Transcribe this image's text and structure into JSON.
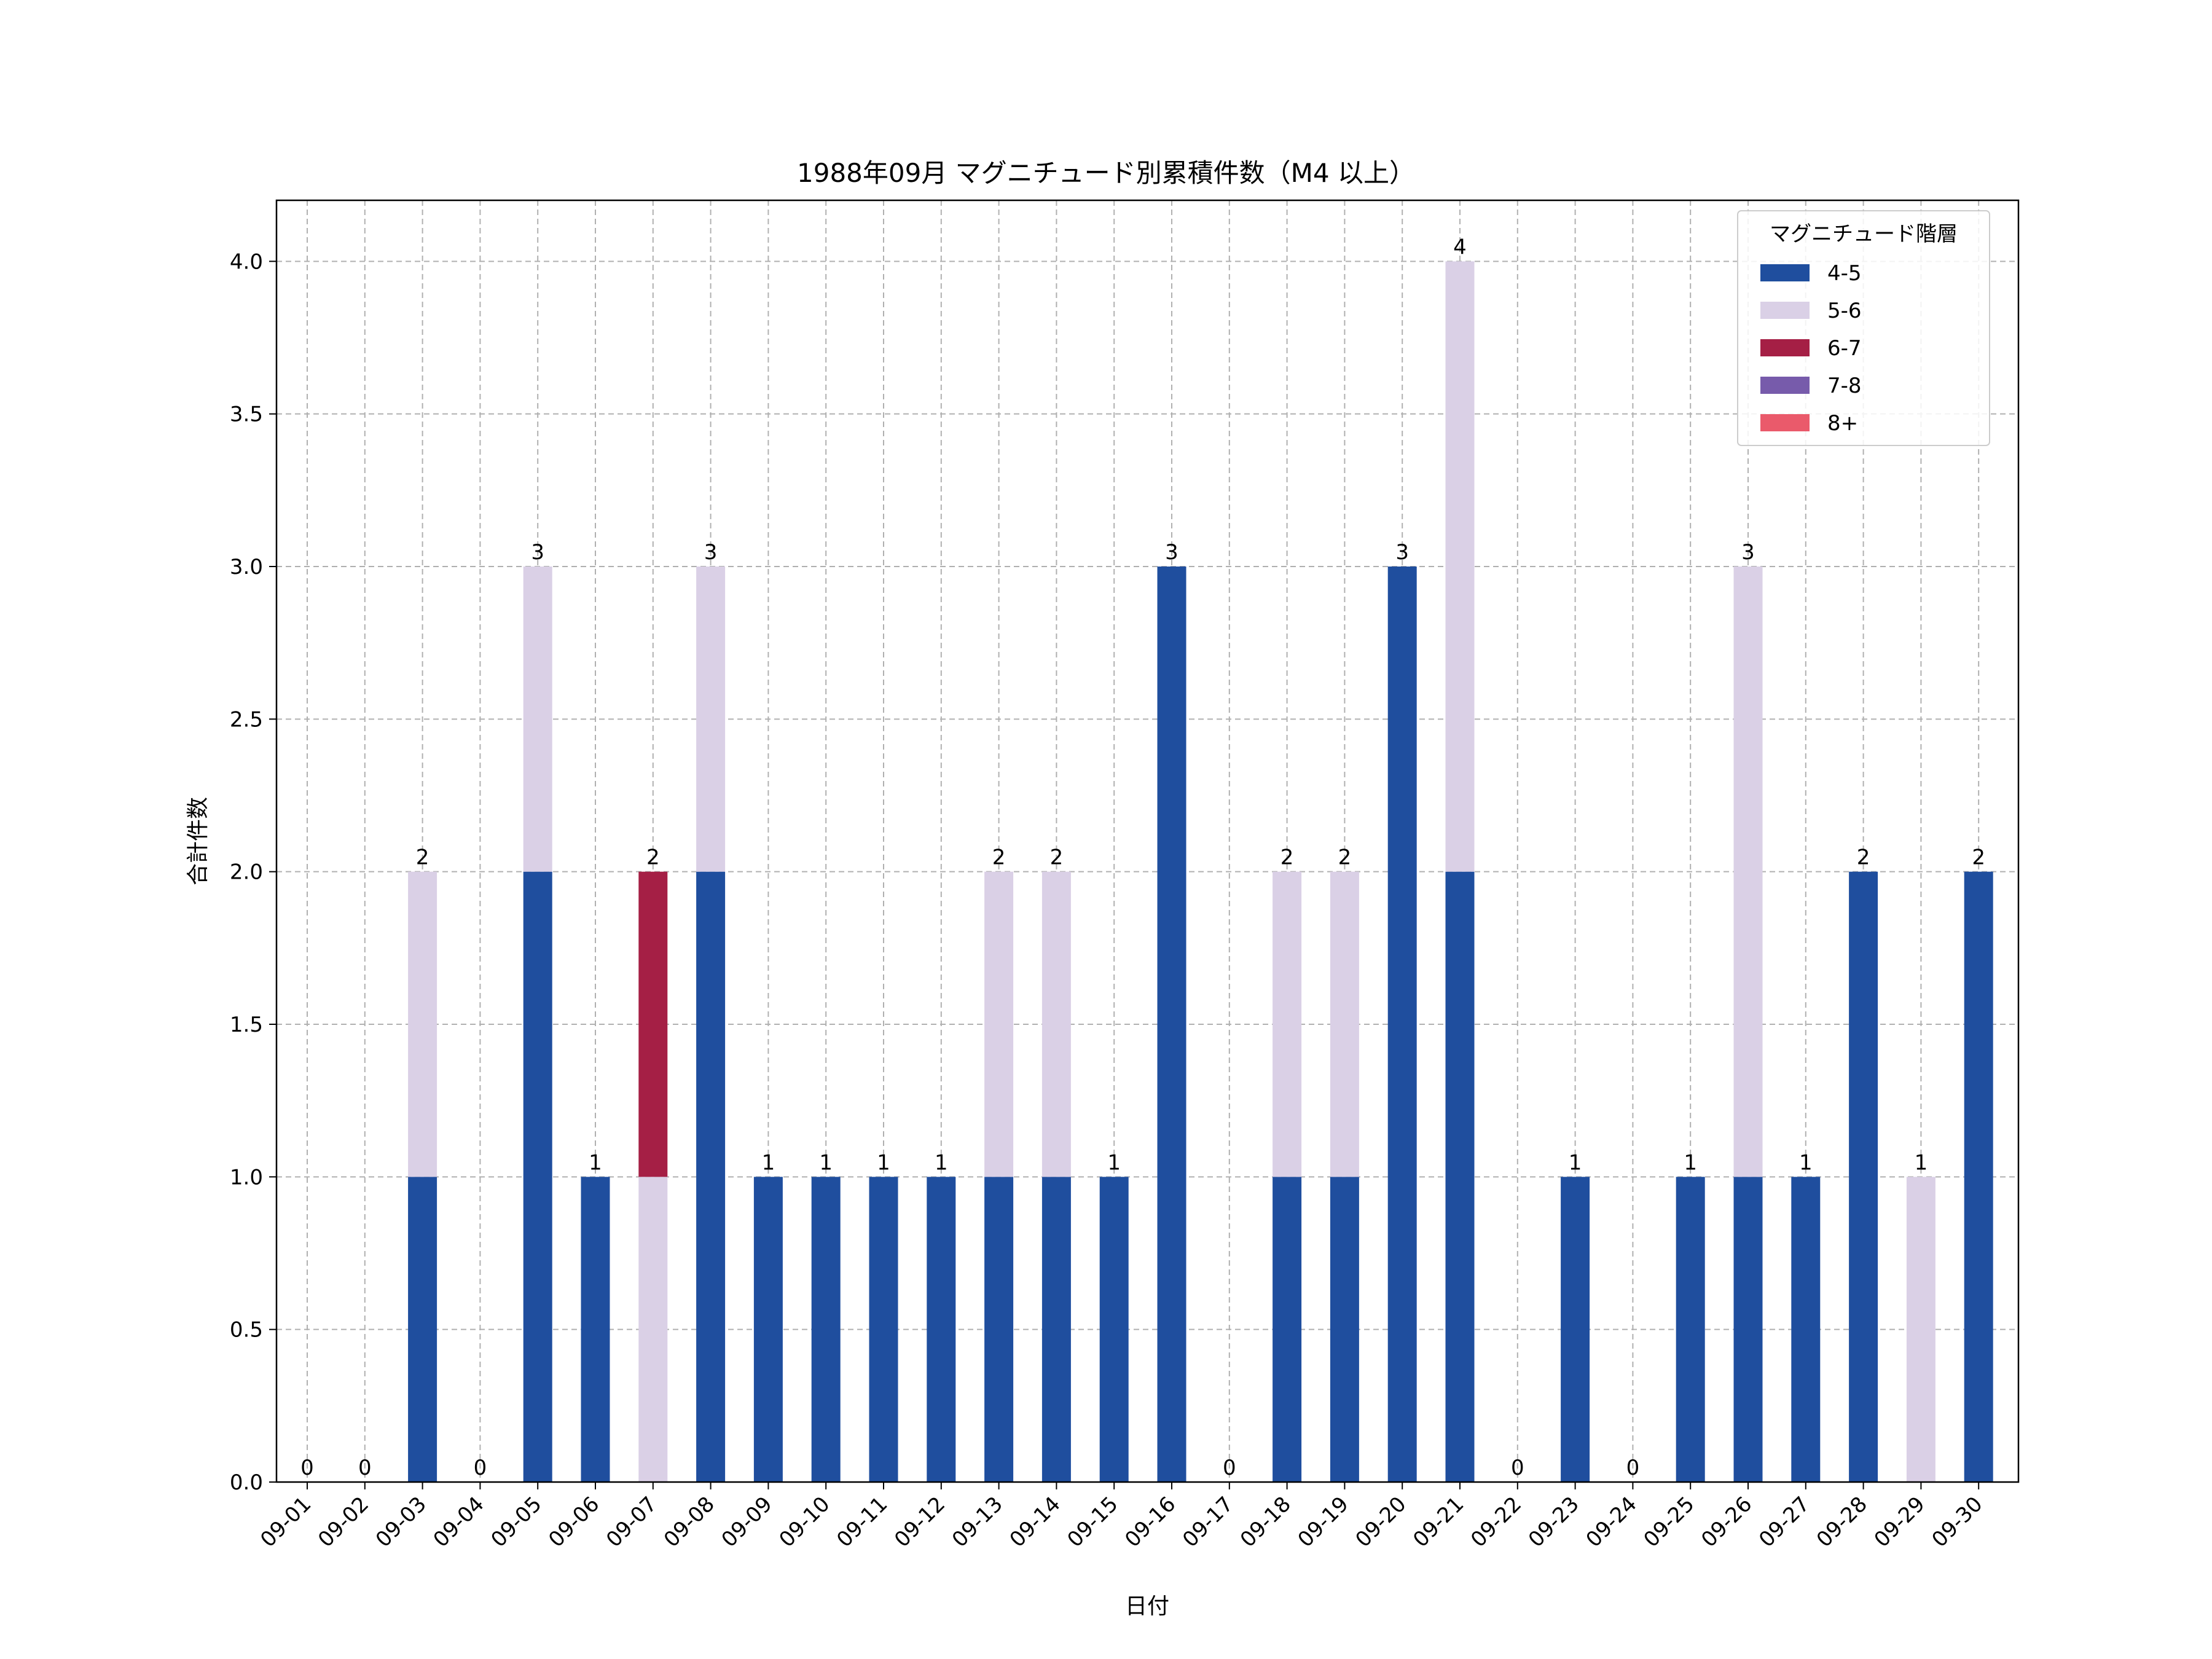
{
  "chart_data": {
    "type": "bar",
    "stacked": true,
    "title": "1988年09月 マグニチュード別累積件数（M4 以上）",
    "xlabel": "日付",
    "ylabel": "合計件数",
    "ylim": [
      0,
      4.2
    ],
    "yticks": [
      0.0,
      0.5,
      1.0,
      1.5,
      2.0,
      2.5,
      3.0,
      3.5,
      4.0
    ],
    "ytick_labels": [
      "0.0",
      "0.5",
      "1.0",
      "1.5",
      "2.0",
      "2.5",
      "3.0",
      "3.5",
      "4.0"
    ],
    "grid": true,
    "legend_title": "マグニチュード階層",
    "legend_position": "top-right",
    "categories": [
      "09-01",
      "09-02",
      "09-03",
      "09-04",
      "09-05",
      "09-06",
      "09-07",
      "09-08",
      "09-09",
      "09-10",
      "09-11",
      "09-12",
      "09-13",
      "09-14",
      "09-15",
      "09-16",
      "09-17",
      "09-18",
      "09-19",
      "09-20",
      "09-21",
      "09-22",
      "09-23",
      "09-24",
      "09-25",
      "09-26",
      "09-27",
      "09-28",
      "09-29",
      "09-30"
    ],
    "series": [
      {
        "name": "4-5",
        "color": "#1f4e9e",
        "values": [
          0,
          0,
          1,
          0,
          2,
          1,
          0,
          2,
          1,
          1,
          1,
          1,
          1,
          1,
          1,
          3,
          0,
          1,
          1,
          3,
          2,
          0,
          1,
          0,
          1,
          1,
          1,
          2,
          0,
          2
        ]
      },
      {
        "name": "5-6",
        "color": "#dad0e6",
        "values": [
          0,
          0,
          1,
          0,
          1,
          0,
          1,
          1,
          0,
          0,
          0,
          0,
          1,
          1,
          0,
          0,
          0,
          1,
          1,
          0,
          2,
          0,
          0,
          0,
          0,
          2,
          0,
          0,
          1,
          0
        ]
      },
      {
        "name": "6-7",
        "color": "#a51f45",
        "values": [
          0,
          0,
          0,
          0,
          0,
          0,
          1,
          0,
          0,
          0,
          0,
          0,
          0,
          0,
          0,
          0,
          0,
          0,
          0,
          0,
          0,
          0,
          0,
          0,
          0,
          0,
          0,
          0,
          0,
          0
        ]
      },
      {
        "name": "7-8",
        "color": "#775bab",
        "values": [
          0,
          0,
          0,
          0,
          0,
          0,
          0,
          0,
          0,
          0,
          0,
          0,
          0,
          0,
          0,
          0,
          0,
          0,
          0,
          0,
          0,
          0,
          0,
          0,
          0,
          0,
          0,
          0,
          0,
          0
        ]
      },
      {
        "name": "8+",
        "color": "#ea5a6b",
        "values": [
          0,
          0,
          0,
          0,
          0,
          0,
          0,
          0,
          0,
          0,
          0,
          0,
          0,
          0,
          0,
          0,
          0,
          0,
          0,
          0,
          0,
          0,
          0,
          0,
          0,
          0,
          0,
          0,
          0,
          0
        ]
      }
    ],
    "totals": [
      0,
      0,
      2,
      0,
      3,
      1,
      2,
      3,
      1,
      1,
      1,
      1,
      2,
      2,
      1,
      3,
      0,
      2,
      2,
      3,
      4,
      0,
      1,
      0,
      1,
      3,
      1,
      2,
      1,
      2
    ]
  }
}
